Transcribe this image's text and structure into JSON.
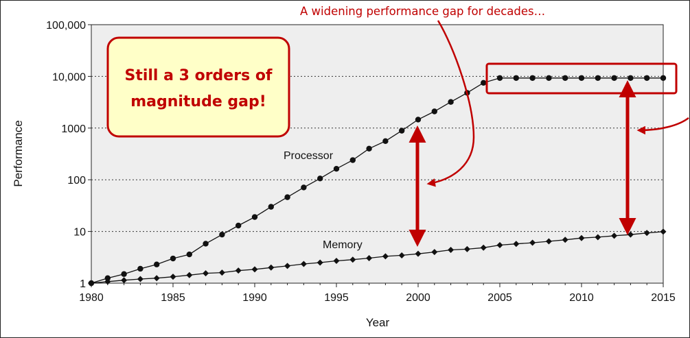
{
  "colors": {
    "accent": "#c00000",
    "plot_background": "#eeeeee",
    "callout_fill": "#ffffc8",
    "series": "#111111"
  },
  "annotations": {
    "top_callout": "A widening performance gap for decades…",
    "gap_box_line1": "Still a 3 orders of",
    "gap_box_line2": "magnitude gap!"
  },
  "chart_data": {
    "type": "line",
    "title": "",
    "xlabel": "Year",
    "ylabel": "Performance",
    "xlim": [
      1980,
      2015
    ],
    "ylim": [
      1,
      100000
    ],
    "y_scale": "log",
    "grid": "dotted horizontal at decades",
    "x_ticks": [
      1980,
      1985,
      1990,
      1995,
      2000,
      2005,
      2010,
      2015
    ],
    "x_tick_labels": [
      "1980",
      "1985",
      "1990",
      "1995",
      "2000",
      "2005",
      "2010",
      "2015"
    ],
    "y_ticks": [
      1,
      10,
      100,
      1000,
      10000,
      100000
    ],
    "y_tick_labels": [
      "1",
      "10",
      "100",
      "1000",
      "10,000",
      "100,000"
    ],
    "x": [
      1980,
      1981,
      1982,
      1983,
      1984,
      1985,
      1986,
      1987,
      1988,
      1989,
      1990,
      1991,
      1992,
      1993,
      1994,
      1995,
      1996,
      1997,
      1998,
      1999,
      2000,
      2001,
      2002,
      2003,
      2004,
      2005,
      2006,
      2007,
      2008,
      2009,
      2010,
      2011,
      2012,
      2013,
      2014,
      2015
    ],
    "series": [
      {
        "name": "Processor",
        "marker": "circle",
        "values": [
          1,
          1.25,
          1.5,
          1.9,
          2.3,
          3.0,
          3.6,
          5.8,
          8.7,
          13,
          19,
          30,
          46,
          71,
          106,
          163,
          240,
          400,
          560,
          890,
          1460,
          2100,
          3200,
          4800,
          7500,
          9300,
          9300,
          9300,
          9300,
          9300,
          9300,
          9300,
          9300,
          9300,
          9300,
          9300
        ]
      },
      {
        "name": "Memory",
        "marker": "diamond",
        "values": [
          1,
          1.07,
          1.14,
          1.2,
          1.25,
          1.33,
          1.43,
          1.55,
          1.6,
          1.75,
          1.85,
          2.0,
          2.15,
          2.35,
          2.5,
          2.7,
          2.85,
          3.05,
          3.3,
          3.45,
          3.7,
          4.0,
          4.4,
          4.55,
          4.85,
          5.45,
          5.75,
          6.05,
          6.45,
          6.9,
          7.45,
          7.75,
          8.25,
          8.7,
          9.35,
          9.9
        ]
      }
    ]
  }
}
